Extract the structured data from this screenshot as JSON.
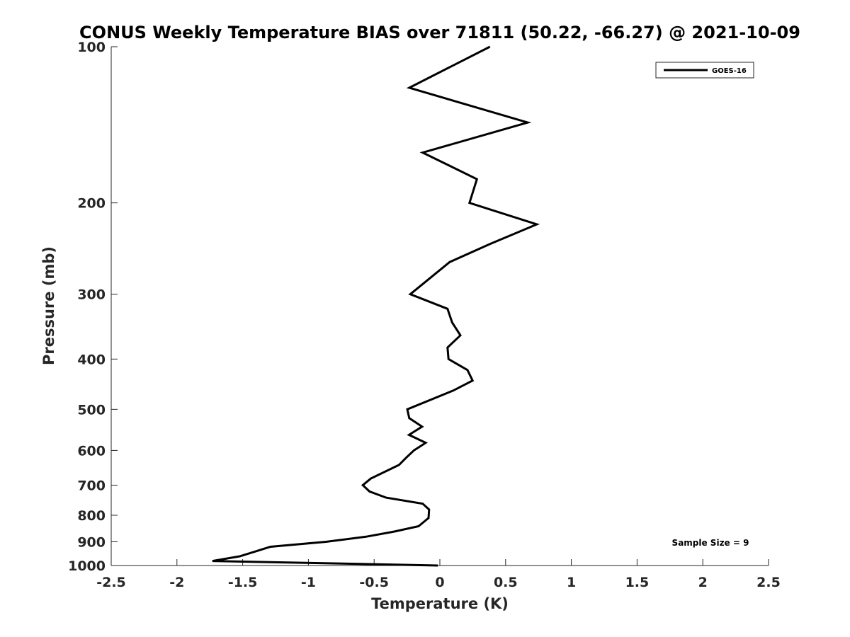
{
  "chart_data": {
    "type": "line",
    "title": "CONUS Weekly Temperature BIAS over 71811 (50.22, -66.27) @ 2021-10-09",
    "xlabel": "Temperature (K)",
    "ylabel": "Pressure (mb)",
    "xlim": [
      -2.5,
      2.5
    ],
    "ylim": [
      100,
      1000
    ],
    "yscale": "log",
    "yreversed": true,
    "xticks": [
      "-2.5",
      "-2",
      "-1.5",
      "-1",
      "-0.5",
      "0",
      "0.5",
      "1",
      "1.5",
      "2",
      "2.5"
    ],
    "xtick_values": [
      -2.5,
      -2,
      -1.5,
      -1,
      -0.5,
      0,
      0.5,
      1,
      1.5,
      2,
      2.5
    ],
    "yticks": [
      "100",
      "200",
      "300",
      "400",
      "500",
      "600",
      "700",
      "800",
      "900",
      "1000"
    ],
    "ytick_values": [
      100,
      200,
      300,
      400,
      500,
      600,
      700,
      800,
      900,
      1000
    ],
    "grid": false,
    "legend_position": "top-right",
    "annotation": "Sample Size = 9",
    "series": [
      {
        "name": "GOES-16",
        "color": "#000000",
        "pressure": [
          100,
          120,
          140,
          160,
          180,
          200,
          220,
          240,
          260,
          280,
          300,
          320,
          340,
          360,
          380,
          400,
          420,
          440,
          460,
          500,
          520,
          540,
          560,
          580,
          600,
          620,
          640,
          680,
          700,
          720,
          740,
          760,
          780,
          810,
          840,
          860,
          880,
          900,
          920,
          940,
          960,
          980,
          1000
        ],
        "temperature": [
          0.381,
          -0.233,
          0.668,
          -0.131,
          0.282,
          0.225,
          0.737,
          0.381,
          0.075,
          -0.081,
          -0.225,
          0.058,
          0.093,
          0.156,
          0.058,
          0.066,
          0.21,
          0.249,
          0.102,
          -0.248,
          -0.233,
          -0.135,
          -0.235,
          -0.108,
          -0.198,
          -0.257,
          -0.311,
          -0.526,
          -0.586,
          -0.535,
          -0.409,
          -0.131,
          -0.082,
          -0.086,
          -0.162,
          -0.346,
          -0.562,
          -0.867,
          -1.289,
          -1.406,
          -1.523,
          -1.73,
          -0.015
        ]
      }
    ]
  }
}
